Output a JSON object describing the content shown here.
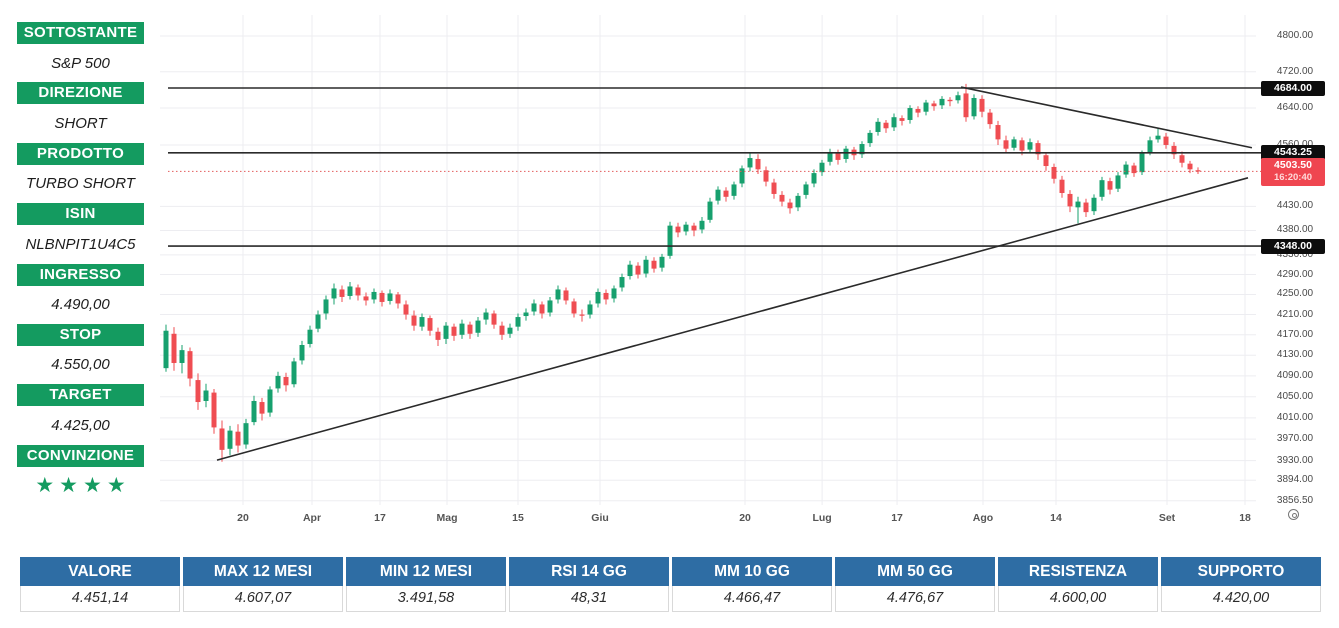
{
  "sidebar": {
    "accent_color": "#149b60",
    "items": [
      {
        "label": "SOTTOSTANTE",
        "value": "S&P 500"
      },
      {
        "label": "DIREZIONE",
        "value": "SHORT"
      },
      {
        "label": "PRODOTTO",
        "value": "TURBO SHORT"
      },
      {
        "label": "ISIN",
        "value": "NLBNPIT1U4C5"
      },
      {
        "label": "INGRESSO",
        "value": "4.490,00"
      },
      {
        "label": "STOP",
        "value": "4.550,00"
      },
      {
        "label": "TARGET",
        "value": "4.425,00"
      },
      {
        "label": "CONVINZIONE",
        "value": "★★★★",
        "stars": 4
      }
    ]
  },
  "table": {
    "header_color": "#2e6da4",
    "columns": [
      {
        "header": "VALORE",
        "value": "4.451,14"
      },
      {
        "header": "MAX 12 MESI",
        "value": "4.607,07"
      },
      {
        "header": "MIN 12 MESI",
        "value": "3.491,58"
      },
      {
        "header": "RSI 14 GG",
        "value": "48,31"
      },
      {
        "header": "MM 10 GG",
        "value": "4.466,47"
      },
      {
        "header": "MM 50 GG",
        "value": "4.476,67"
      },
      {
        "header": "RESISTENZA",
        "value": "4.600,00"
      },
      {
        "header": "SUPPORTO",
        "value": "4.420,00"
      }
    ]
  },
  "chart_data": {
    "type": "candlestick",
    "symbol": "S&P 500",
    "last_price": 4503.5,
    "last_time": "16:20:40",
    "colors": {
      "up": "#17a06e",
      "down": "#ef4d52",
      "line": "#2a2a2a",
      "grid": "#ededf1",
      "current_line": "#e25c5c",
      "badge_dark": "#0d0d0d",
      "badge_red": "#ef4650"
    },
    "y_axis_ticks": [
      4800,
      4720,
      4640,
      4560,
      4430,
      4380,
      4330,
      4290,
      4250,
      4210,
      4170,
      4130,
      4090,
      4050,
      4010,
      3970,
      3930,
      3894,
      3856.5
    ],
    "price_badges": [
      {
        "label": "4684.00",
        "price": 4684,
        "style": "dark"
      },
      {
        "label": "4543.25",
        "price": 4543.25,
        "style": "dark"
      },
      {
        "label": "4503.50",
        "price": 4503.5,
        "style": "red",
        "time": "16:20:40"
      },
      {
        "label": "4348.00",
        "price": 4348,
        "style": "dark"
      }
    ],
    "horizontal_levels": [
      4684,
      4543.25,
      4348
    ],
    "current_price_line": 4503.5,
    "trendlines": [
      {
        "name": "ascending-support",
        "x1f": 0.052,
        "p1": 3931,
        "x2f": 0.9927,
        "p2": 4490
      },
      {
        "name": "descending-resistance",
        "x1f": 0.7309,
        "p1": 4686,
        "x2f": 0.9963,
        "p2": 4554
      }
    ],
    "x_axis_labels": [
      {
        "t": "20",
        "f": 0.0757
      },
      {
        "t": "Apr",
        "f": 0.1387
      },
      {
        "t": "17",
        "f": 0.2007
      },
      {
        "t": "Mag",
        "f": 0.2619
      },
      {
        "t": "15",
        "f": 0.3266
      },
      {
        "t": "Giu",
        "f": 0.4015
      },
      {
        "t": "20",
        "f": 0.5338
      },
      {
        "t": "Lug",
        "f": 0.6041
      },
      {
        "t": "17",
        "f": 0.6725
      },
      {
        "t": "Ago",
        "f": 0.7509
      },
      {
        "t": "14",
        "f": 0.8175
      },
      {
        "t": "Set",
        "f": 0.9188
      },
      {
        "t": "18",
        "f": 0.99
      }
    ],
    "candles_ohlc": [
      [
        4105,
        4190,
        4098,
        4178
      ],
      [
        4172,
        4185,
        4100,
        4115
      ],
      [
        4115,
        4150,
        4095,
        4140
      ],
      [
        4138,
        4145,
        4070,
        4085
      ],
      [
        4082,
        4095,
        4025,
        4040
      ],
      [
        4042,
        4075,
        4030,
        4062
      ],
      [
        4058,
        4065,
        3980,
        3992
      ],
      [
        3990,
        4005,
        3928,
        3950
      ],
      [
        3952,
        3995,
        3940,
        3986
      ],
      [
        3984,
        3998,
        3945,
        3958
      ],
      [
        3960,
        4008,
        3952,
        4000
      ],
      [
        4002,
        4052,
        3996,
        4042
      ],
      [
        4040,
        4048,
        4005,
        4018
      ],
      [
        4020,
        4070,
        4012,
        4064
      ],
      [
        4066,
        4098,
        4058,
        4090
      ],
      [
        4088,
        4096,
        4060,
        4072
      ],
      [
        4074,
        4125,
        4068,
        4118
      ],
      [
        4120,
        4158,
        4112,
        4150
      ],
      [
        4152,
        4188,
        4145,
        4180
      ],
      [
        4182,
        4218,
        4175,
        4210
      ],
      [
        4212,
        4248,
        4200,
        4240
      ],
      [
        4242,
        4272,
        4230,
        4262
      ],
      [
        4260,
        4268,
        4235,
        4245
      ],
      [
        4247,
        4275,
        4240,
        4266
      ],
      [
        4264,
        4270,
        4238,
        4248
      ],
      [
        4246,
        4254,
        4228,
        4238
      ],
      [
        4240,
        4262,
        4232,
        4255
      ],
      [
        4253,
        4258,
        4226,
        4235
      ],
      [
        4237,
        4260,
        4230,
        4252
      ],
      [
        4250,
        4255,
        4222,
        4232
      ],
      [
        4230,
        4238,
        4200,
        4210
      ],
      [
        4208,
        4218,
        4178,
        4188
      ],
      [
        4186,
        4212,
        4178,
        4205
      ],
      [
        4203,
        4208,
        4168,
        4178
      ],
      [
        4176,
        4184,
        4148,
        4160
      ],
      [
        4162,
        4195,
        4152,
        4188
      ],
      [
        4186,
        4192,
        4158,
        4168
      ],
      [
        4170,
        4200,
        4162,
        4192
      ],
      [
        4190,
        4196,
        4162,
        4172
      ],
      [
        4174,
        4205,
        4166,
        4198
      ],
      [
        4200,
        4222,
        4190,
        4214
      ],
      [
        4212,
        4218,
        4182,
        4190
      ],
      [
        4188,
        4196,
        4160,
        4170
      ],
      [
        4172,
        4192,
        4164,
        4184
      ],
      [
        4186,
        4212,
        4178,
        4205
      ],
      [
        4207,
        4222,
        4198,
        4214
      ],
      [
        4216,
        4240,
        4208,
        4232
      ],
      [
        4230,
        4236,
        4202,
        4212
      ],
      [
        4214,
        4245,
        4206,
        4238
      ],
      [
        4240,
        4268,
        4232,
        4260
      ],
      [
        4258,
        4264,
        4230,
        4238
      ],
      [
        4236,
        4242,
        4204,
        4212
      ],
      [
        4210,
        4220,
        4196,
        4208
      ],
      [
        4210,
        4238,
        4202,
        4230
      ],
      [
        4232,
        4262,
        4224,
        4255
      ],
      [
        4253,
        4260,
        4230,
        4240
      ],
      [
        4242,
        4268,
        4234,
        4262
      ],
      [
        4264,
        4292,
        4256,
        4285
      ],
      [
        4287,
        4318,
        4280,
        4310
      ],
      [
        4308,
        4315,
        4282,
        4290
      ],
      [
        4292,
        4328,
        4284,
        4320
      ],
      [
        4318,
        4325,
        4294,
        4302
      ],
      [
        4304,
        4332,
        4296,
        4326
      ],
      [
        4328,
        4398,
        4322,
        4390
      ],
      [
        4388,
        4396,
        4366,
        4376
      ],
      [
        4378,
        4398,
        4370,
        4392
      ],
      [
        4390,
        4396,
        4368,
        4380
      ],
      [
        4382,
        4408,
        4374,
        4400
      ],
      [
        4402,
        4448,
        4396,
        4440
      ],
      [
        4442,
        4472,
        4434,
        4465
      ],
      [
        4463,
        4470,
        4440,
        4450
      ],
      [
        4452,
        4482,
        4444,
        4476
      ],
      [
        4478,
        4516,
        4470,
        4510
      ],
      [
        4512,
        4543,
        4504,
        4532
      ],
      [
        4530,
        4540,
        4498,
        4508
      ],
      [
        4506,
        4514,
        4472,
        4482
      ],
      [
        4480,
        4488,
        4446,
        4456
      ],
      [
        4454,
        4462,
        4430,
        4440
      ],
      [
        4438,
        4446,
        4415,
        4426
      ],
      [
        4428,
        4458,
        4420,
        4452
      ],
      [
        4454,
        4482,
        4446,
        4476
      ],
      [
        4478,
        4508,
        4470,
        4500
      ],
      [
        4502,
        4528,
        4494,
        4522
      ],
      [
        4524,
        4552,
        4516,
        4545
      ],
      [
        4543,
        4550,
        4518,
        4528
      ],
      [
        4530,
        4558,
        4522,
        4552
      ],
      [
        4550,
        4556,
        4528,
        4538
      ],
      [
        4540,
        4568,
        4532,
        4562
      ],
      [
        4564,
        4592,
        4556,
        4586
      ],
      [
        4588,
        4618,
        4580,
        4610
      ],
      [
        4608,
        4614,
        4586,
        4596
      ],
      [
        4598,
        4628,
        4590,
        4620
      ],
      [
        4618,
        4624,
        4602,
        4612
      ],
      [
        4614,
        4646,
        4606,
        4640
      ],
      [
        4638,
        4644,
        4620,
        4630
      ],
      [
        4632,
        4658,
        4624,
        4652
      ],
      [
        4650,
        4656,
        4634,
        4644
      ],
      [
        4646,
        4666,
        4638,
        4660
      ],
      [
        4658,
        4664,
        4644,
        4655
      ],
      [
        4657,
        4676,
        4650,
        4668
      ],
      [
        4672,
        4693,
        4610,
        4620
      ],
      [
        4622,
        4670,
        4615,
        4662
      ],
      [
        4660,
        4668,
        4620,
        4632
      ],
      [
        4630,
        4638,
        4595,
        4605
      ],
      [
        4603,
        4612,
        4560,
        4572
      ],
      [
        4570,
        4580,
        4542,
        4552
      ],
      [
        4554,
        4578,
        4548,
        4572
      ],
      [
        4570,
        4576,
        4538,
        4548
      ],
      [
        4550,
        4574,
        4542,
        4566
      ],
      [
        4564,
        4570,
        4528,
        4540
      ],
      [
        4538,
        4545,
        4505,
        4515
      ],
      [
        4513,
        4520,
        4478,
        4488
      ],
      [
        4486,
        4494,
        4448,
        4458
      ],
      [
        4456,
        4464,
        4418,
        4430
      ],
      [
        4428,
        4450,
        4395,
        4440
      ],
      [
        4438,
        4446,
        4408,
        4418
      ],
      [
        4420,
        4455,
        4412,
        4448
      ],
      [
        4450,
        4492,
        4442,
        4485
      ],
      [
        4483,
        4490,
        4455,
        4465
      ],
      [
        4467,
        4502,
        4460,
        4495
      ],
      [
        4497,
        4525,
        4490,
        4518
      ],
      [
        4516,
        4522,
        4492,
        4500
      ],
      [
        4502,
        4548,
        4496,
        4542
      ],
      [
        4544,
        4578,
        4538,
        4570
      ],
      [
        4572,
        4597,
        4565,
        4580
      ],
      [
        4578,
        4586,
        4552,
        4560
      ],
      [
        4558,
        4566,
        4530,
        4540
      ],
      [
        4538,
        4546,
        4512,
        4522
      ],
      [
        4520,
        4526,
        4500,
        4508
      ],
      [
        4506,
        4512,
        4498,
        4503.5
      ]
    ]
  }
}
